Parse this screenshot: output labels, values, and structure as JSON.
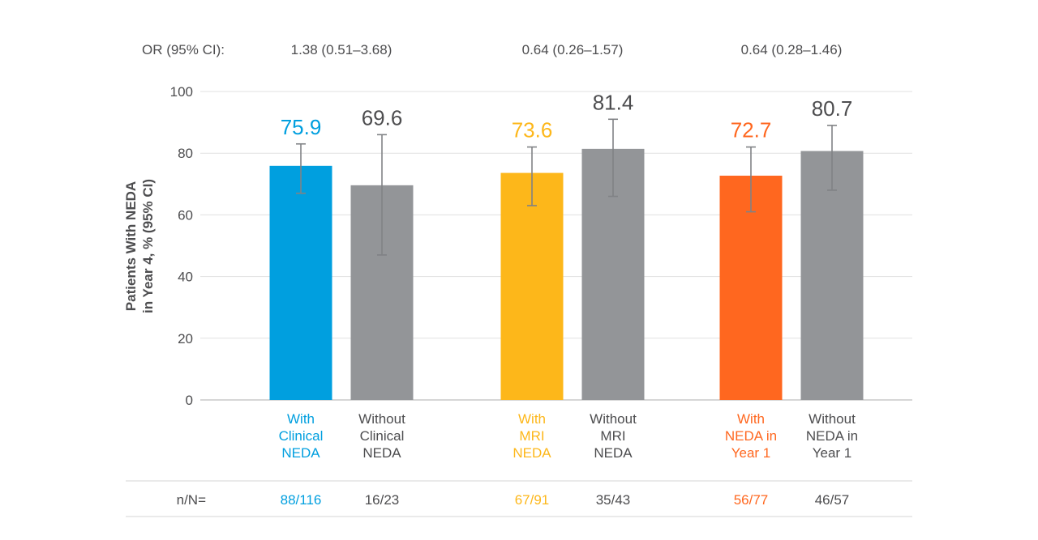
{
  "chart_data": {
    "type": "bar",
    "ylabel_line1": "Patients With NEDA",
    "ylabel_line2": "in Year 4, % (95% CI)",
    "ylim": [
      0,
      100
    ],
    "yticks": [
      0,
      20,
      40,
      60,
      80,
      100
    ],
    "grid": true,
    "or_header_label": "OR (95% CI):",
    "nn_header_label": "n/N=",
    "groups": [
      {
        "odds_ratio": "1.38 (0.51–3.68)",
        "bars": [
          {
            "label": [
              "With",
              "Clinical",
              "NEDA"
            ],
            "value": 75.9,
            "value_text": "75.9",
            "ci": [
              67,
              83
            ],
            "nn": "88/116",
            "color": "#009fdf",
            "text_color": "#009fdf"
          },
          {
            "label": [
              "Without",
              "Clinical",
              "NEDA"
            ],
            "value": 69.6,
            "value_text": "69.6",
            "ci": [
              47,
              86
            ],
            "nn": "16/23",
            "color": "#939598",
            "text_color": "#4d4d4f"
          }
        ]
      },
      {
        "odds_ratio": "0.64 (0.26–1.57)",
        "bars": [
          {
            "label": [
              "With",
              "MRI",
              "NEDA"
            ],
            "value": 73.6,
            "value_text": "73.6",
            "ci": [
              63,
              82
            ],
            "nn": "67/91",
            "color": "#fdb71a",
            "text_color": "#fdb71a"
          },
          {
            "label": [
              "Without",
              "MRI",
              "NEDA"
            ],
            "value": 81.4,
            "value_text": "81.4",
            "ci": [
              66,
              91
            ],
            "nn": "35/43",
            "color": "#939598",
            "text_color": "#4d4d4f"
          }
        ]
      },
      {
        "odds_ratio": "0.64 (0.28–1.46)",
        "bars": [
          {
            "label": [
              "With",
              "NEDA in",
              "Year 1"
            ],
            "value": 72.7,
            "value_text": "72.7",
            "ci": [
              61,
              82
            ],
            "nn": "56/77",
            "color": "#ff671f",
            "text_color": "#ff671f"
          },
          {
            "label": [
              "Without",
              "NEDA in",
              "Year 1"
            ],
            "value": 80.7,
            "value_text": "80.7",
            "ci": [
              68,
              89
            ],
            "nn": "46/57",
            "color": "#939598",
            "text_color": "#4d4d4f"
          }
        ]
      }
    ]
  }
}
